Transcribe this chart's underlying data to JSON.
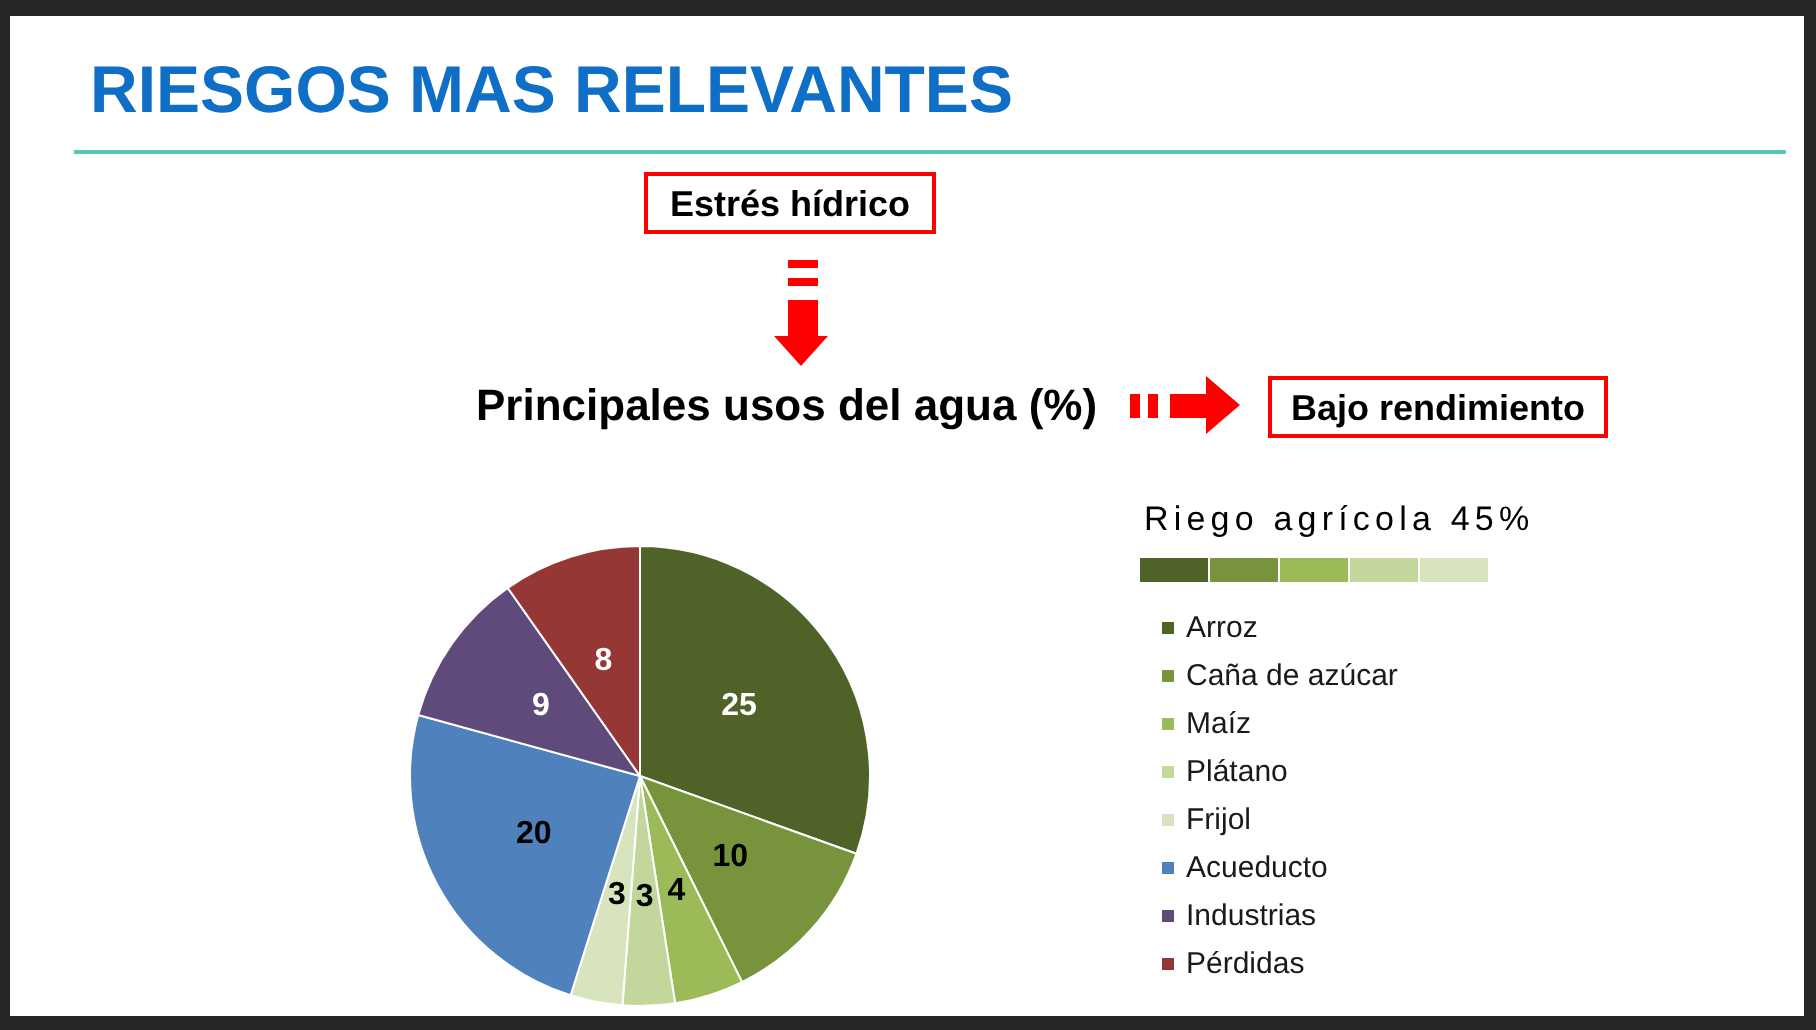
{
  "chart_data": {
    "type": "pie",
    "title": "RIESGOS MAS RELEVANTES",
    "subtitle": "Principales usos del agua (%)",
    "legend_title": "Riego agrícola 45%",
    "categories": [
      "Arroz",
      "Caña de azúcar",
      "Maíz",
      "Plátano",
      "Frijol",
      "Acueducto",
      "Industrias",
      "Pérdidas"
    ],
    "values": [
      25,
      10,
      4,
      3,
      3,
      20,
      9,
      8
    ],
    "colors": [
      "#4f6228",
      "#77933c",
      "#9bbb59",
      "#c3d69b",
      "#d7e4bd",
      "#4f81bd",
      "#604a7b",
      "#953735"
    ],
    "data_labels": true,
    "legend": "right",
    "annotations": [
      "Estrés hídrico",
      "Bajo rendimiento"
    ]
  }
}
